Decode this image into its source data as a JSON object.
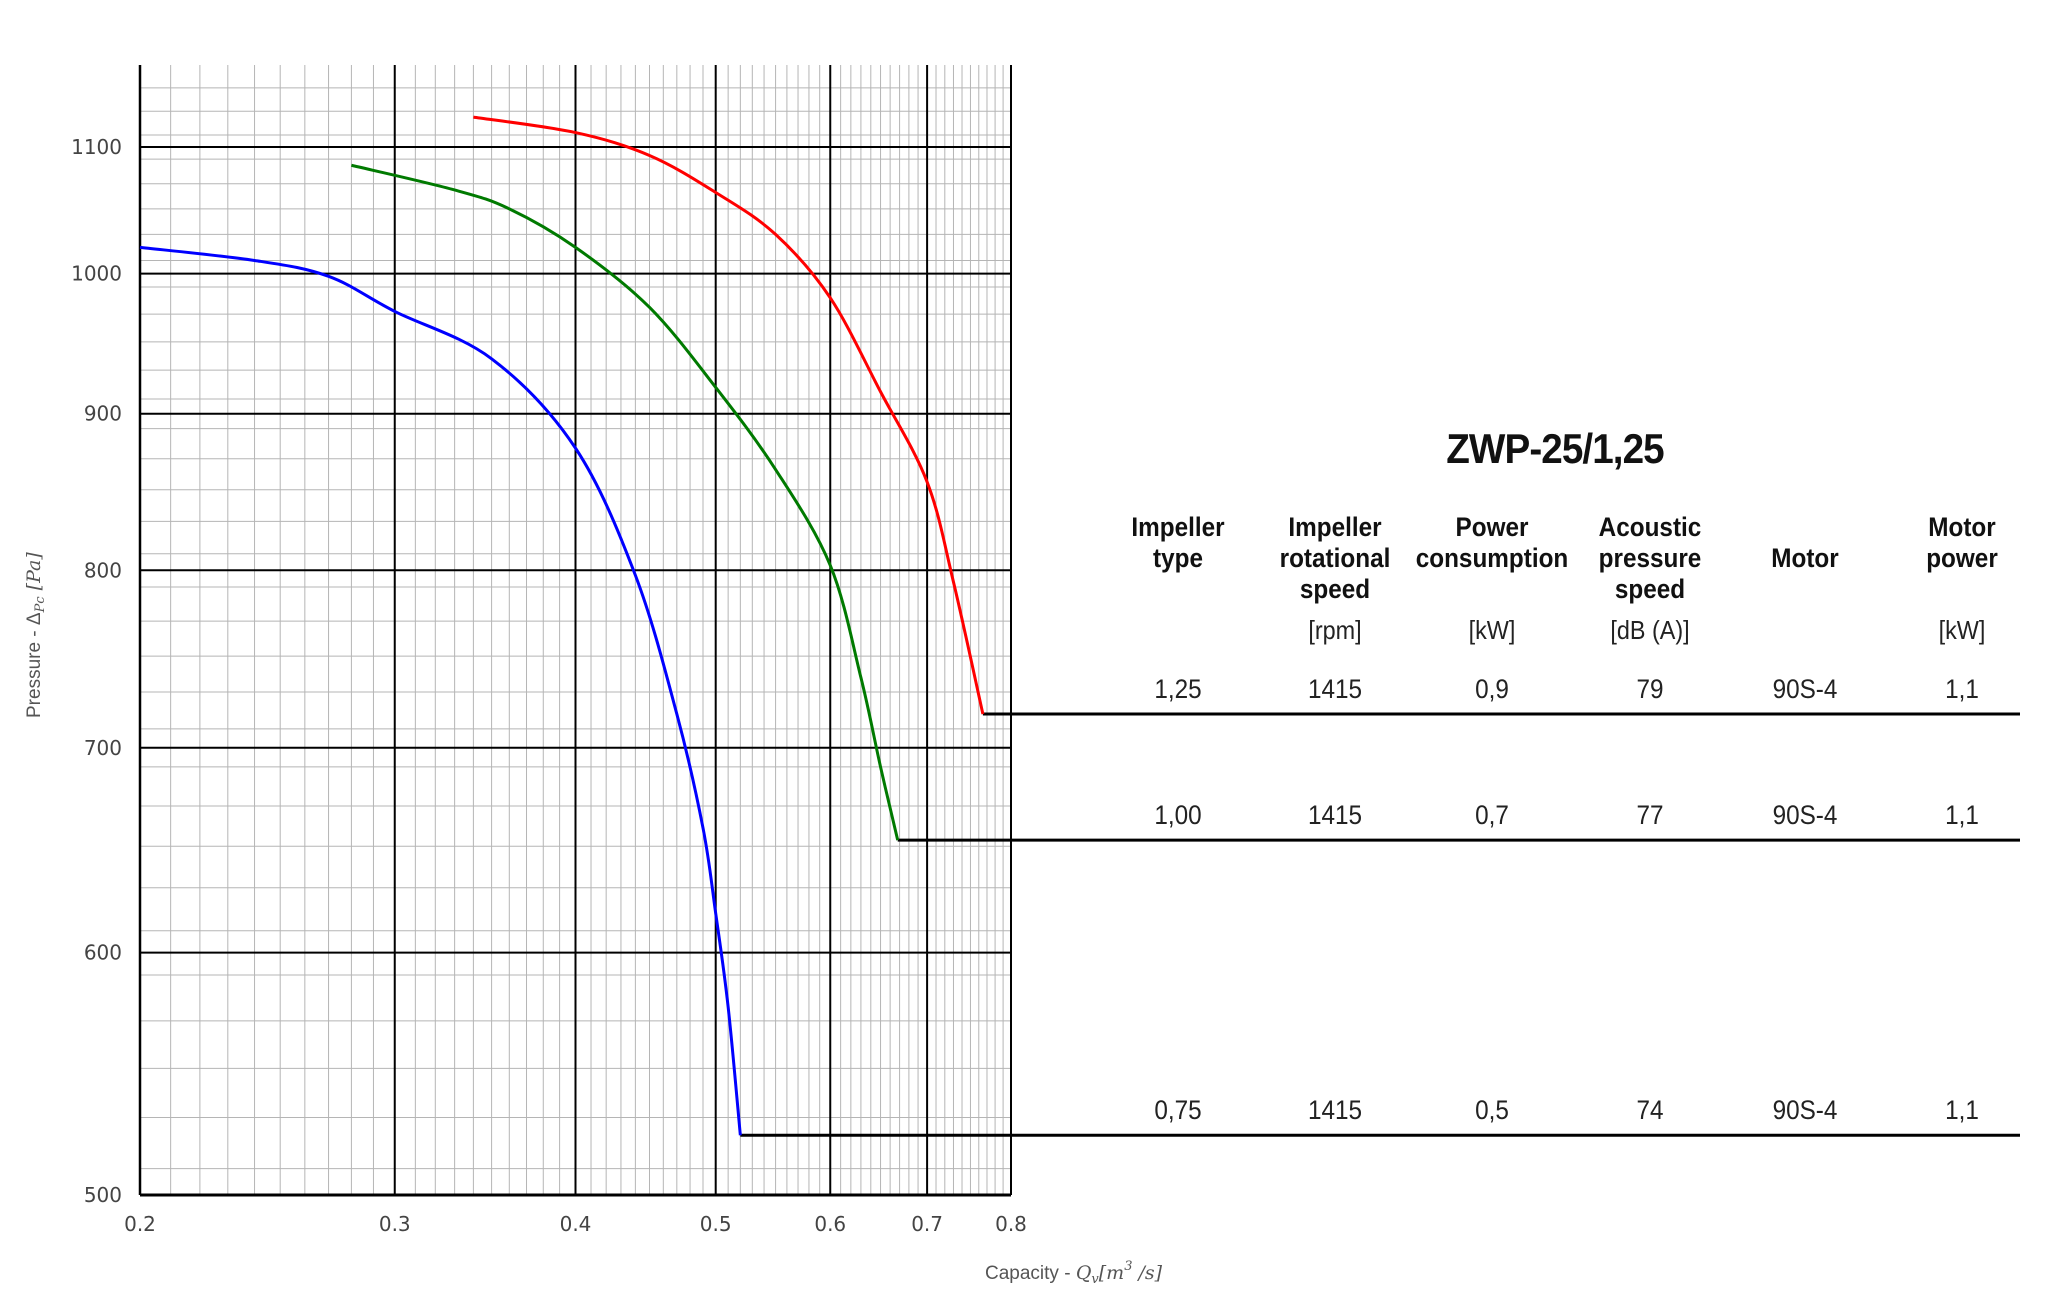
{
  "chart_data": {
    "type": "line",
    "x_scale": "log",
    "y_scale": "log",
    "xlim": [
      0.2,
      0.8
    ],
    "ylim": [
      500,
      1170
    ],
    "x_ticks": [
      "0.2",
      "0.3",
      "0.4",
      "0.5",
      "0.6",
      "0.7",
      "0.8"
    ],
    "y_ticks": [
      "500",
      "600",
      "700",
      "800",
      "900",
      "1000",
      "1100"
    ],
    "xlabel": "Capacity - Q_v [m^3 /s]",
    "ylabel": "Pressure - Δ_Pc [Pa]",
    "grid": true,
    "series": [
      {
        "color": "#ff0000",
        "x": [
          0.34,
          0.4,
          0.45,
          0.5,
          0.55,
          0.6,
          0.65,
          0.7,
          0.73,
          0.765
        ],
        "y": [
          1125,
          1112,
          1093,
          1063,
          1030,
          982,
          915,
          855,
          793,
          718
        ],
        "end_pressure": 718
      },
      {
        "color": "#007a00",
        "x": [
          0.28,
          0.33,
          0.36,
          0.4,
          0.45,
          0.5,
          0.55,
          0.6,
          0.63,
          0.65,
          0.668
        ],
        "y": [
          1085,
          1065,
          1050,
          1020,
          975,
          918,
          863,
          803,
          738,
          690,
          653
        ],
        "end_pressure": 653
      },
      {
        "color": "#0000ff",
        "x": [
          0.2,
          0.24,
          0.27,
          0.3,
          0.35,
          0.4,
          0.44,
          0.47,
          0.49,
          0.5,
          0.51,
          0.52
        ],
        "y": [
          1020,
          1010,
          998,
          972,
          938,
          877,
          797,
          718,
          659,
          618,
          576,
          523
        ],
        "end_pressure": 523
      }
    ]
  },
  "table": {
    "title": "ZWP-25/1,25",
    "headers": [
      {
        "label": "Impeller\ntype",
        "unit": ""
      },
      {
        "label": "Impeller\nrotational\nspeed",
        "unit": "[rpm]"
      },
      {
        "label": "Power\nconsumption",
        "unit": "[kW]"
      },
      {
        "label": "Acoustic\npressure\nspeed",
        "unit": "[dB (A)]"
      },
      {
        "label": "Motor",
        "unit": ""
      },
      {
        "label": "Motor\npower",
        "unit": "[kW]"
      }
    ],
    "rows": [
      {
        "cells": [
          "1,25",
          "1415",
          "0,9",
          "79",
          "90S-4",
          "1,1"
        ]
      },
      {
        "cells": [
          "1,00",
          "1415",
          "0,7",
          "77",
          "90S-4",
          "1,1"
        ]
      },
      {
        "cells": [
          "0,75",
          "1415",
          "0,5",
          "74",
          "90S-4",
          "1,1"
        ]
      }
    ]
  }
}
